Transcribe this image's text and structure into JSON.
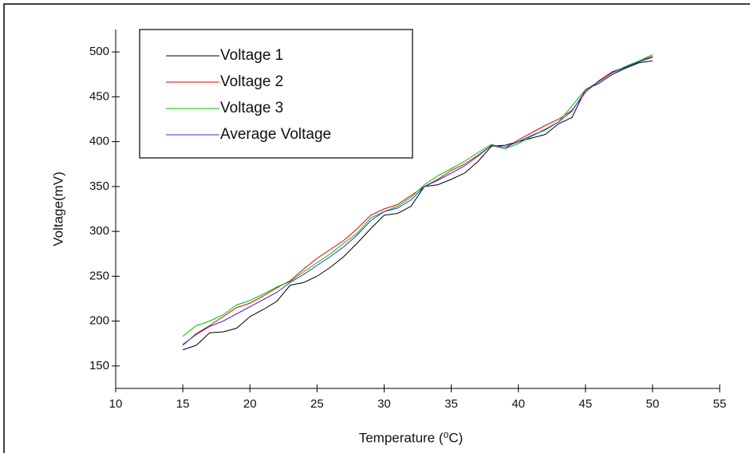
{
  "chart_data": {
    "type": "line",
    "x_label": "Temperature (⁰C)",
    "y_label": "Voltage(mV)",
    "x": [
      15,
      16,
      17,
      18,
      19,
      20,
      21,
      22,
      23,
      24,
      25,
      26,
      27,
      28,
      29,
      30,
      31,
      32,
      33,
      34,
      35,
      36,
      37,
      38,
      39,
      40,
      41,
      42,
      43,
      44,
      45,
      46,
      47,
      48,
      49,
      50
    ],
    "series": [
      {
        "name": "Voltage 1",
        "color": "#000000",
        "values": [
          168,
          173,
          187,
          188,
          192,
          205,
          213,
          222,
          240,
          243,
          250,
          260,
          272,
          287,
          303,
          318,
          320,
          328,
          350,
          352,
          358,
          365,
          378,
          395,
          396,
          400,
          404,
          408,
          420,
          427,
          458,
          465,
          475,
          482,
          488,
          490
        ]
      },
      {
        "name": "Voltage 2",
        "color": "#e00000",
        "values": [
          173,
          186,
          195,
          205,
          215,
          220,
          228,
          237,
          245,
          258,
          270,
          280,
          290,
          303,
          318,
          325,
          330,
          340,
          350,
          358,
          368,
          375,
          385,
          396,
          392,
          402,
          410,
          418,
          425,
          435,
          455,
          468,
          478,
          483,
          490,
          495
        ]
      },
      {
        "name": "Voltage 3",
        "color": "#00c000",
        "values": [
          183,
          195,
          200,
          207,
          218,
          223,
          230,
          238,
          244,
          255,
          265,
          275,
          287,
          298,
          315,
          322,
          328,
          338,
          352,
          362,
          370,
          378,
          388,
          397,
          392,
          398,
          406,
          414,
          422,
          440,
          458,
          467,
          477,
          484,
          490,
          497
        ]
      },
      {
        "name": "Average Voltage",
        "color": "#3030e0",
        "values": [
          174,
          185,
          194,
          200,
          208,
          216,
          224,
          232,
          243,
          252,
          262,
          272,
          283,
          296,
          312,
          322,
          326,
          335,
          350,
          357,
          365,
          373,
          384,
          396,
          394,
          400,
          407,
          413,
          422,
          434,
          457,
          467,
          477,
          483,
          489,
          494
        ]
      }
    ],
    "xlim": [
      10,
      55
    ],
    "xticks": [
      10,
      15,
      20,
      25,
      30,
      35,
      40,
      45,
      50,
      55
    ],
    "ylim": [
      125,
      525
    ],
    "yticks": [
      150,
      200,
      250,
      300,
      350,
      400,
      450,
      500
    ],
    "legend": "upper-left"
  }
}
